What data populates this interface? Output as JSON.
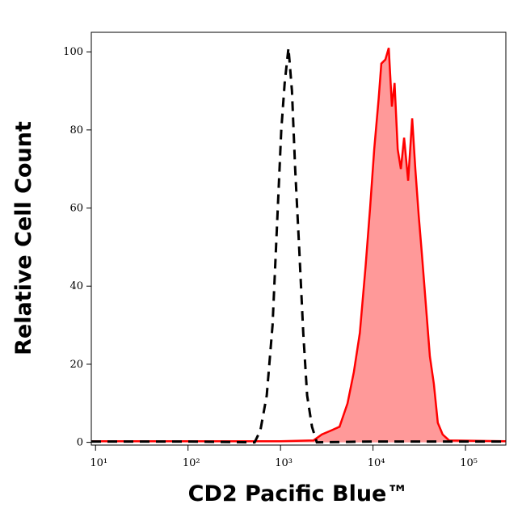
{
  "chart_data": {
    "type": "histogram-overlay",
    "xlabel": "CD2 Pacific Blue™",
    "ylabel": "Relative Cell Count",
    "xscale": "log",
    "xlim": [
      9,
      273000
    ],
    "ylim": [
      -0.7,
      105
    ],
    "xticks": [
      {
        "value": 10,
        "label": "10¹"
      },
      {
        "value": 100,
        "label": "10²"
      },
      {
        "value": 1000,
        "label": "10³"
      },
      {
        "value": 10000,
        "label": "10⁴"
      },
      {
        "value": 100000,
        "label": "10⁵"
      }
    ],
    "yticks": [
      0,
      20,
      40,
      60,
      80,
      100
    ],
    "series": [
      {
        "color": "#000000",
        "style": "dashed",
        "x": [
          9,
          100,
          525,
          605,
          710,
          820,
          915,
          1020,
          1110,
          1220,
          1330,
          1440,
          1590,
          1760,
          1940,
          2190,
          2470,
          10000,
          273000
        ],
        "values": [
          0.2,
          0.2,
          0,
          3,
          12,
          30,
          55,
          80,
          92,
          101,
          90,
          70,
          50,
          28,
          12,
          4,
          0,
          0.2,
          0.2
        ]
      },
      {
        "color": "#ff0000",
        "fill": "#ff9999",
        "style": "filled",
        "x": [
          9,
          1000,
          2280,
          2800,
          3500,
          4350,
          5300,
          6200,
          7200,
          8300,
          9300,
          10300,
          11500,
          12300,
          13600,
          14800,
          16000,
          17100,
          18500,
          20000,
          21700,
          24000,
          26500,
          28700,
          31200,
          33800,
          37300,
          41200,
          45500,
          50200,
          56600,
          66500,
          273000
        ],
        "values": [
          0.3,
          0.3,
          0.5,
          2,
          3,
          4,
          10,
          18,
          28,
          45,
          60,
          75,
          88,
          97,
          98,
          101,
          86,
          92,
          75,
          70,
          78,
          67,
          83,
          70,
          58,
          48,
          35,
          22,
          15,
          5,
          2,
          0.5,
          0.3
        ]
      }
    ]
  }
}
